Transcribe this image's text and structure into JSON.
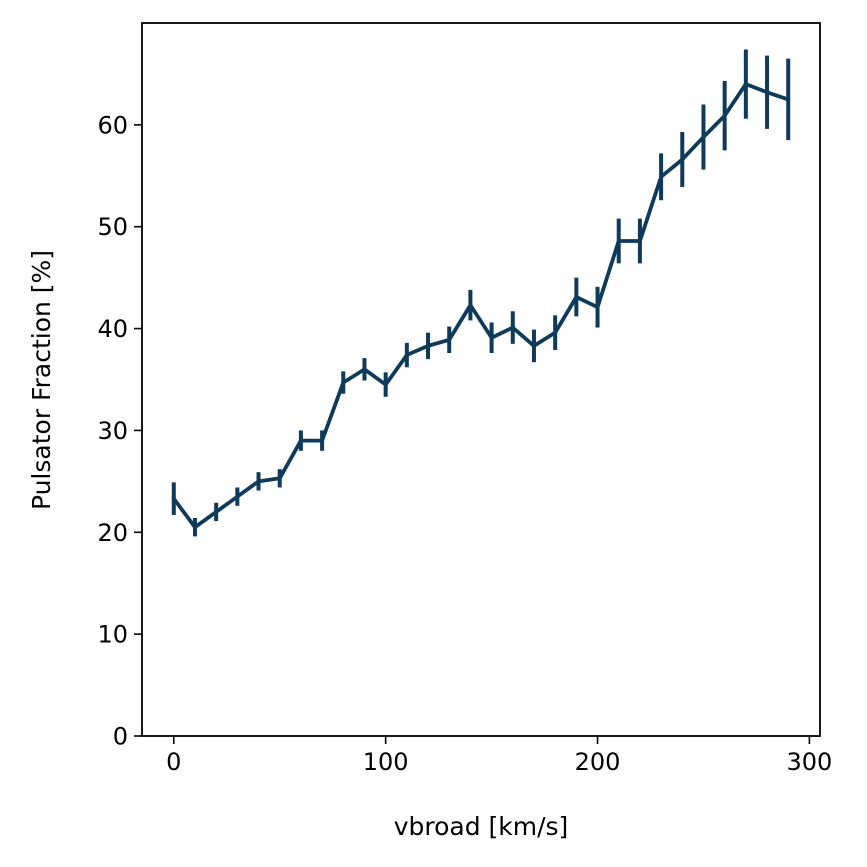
{
  "chart_data": {
    "type": "line",
    "title": "",
    "xlabel": "vbroad [km/s]",
    "ylabel": "Pulsator Fraction [%]",
    "xlim": [
      -15,
      305
    ],
    "ylim": [
      0,
      70
    ],
    "xticks": [
      0,
      100,
      200,
      300
    ],
    "yticks": [
      0,
      10,
      20,
      30,
      40,
      50,
      60
    ],
    "grid": false,
    "line_color": "#0f3a5a",
    "series": [
      {
        "name": "Pulsator Fraction",
        "x": [
          0,
          10,
          20,
          30,
          40,
          50,
          60,
          70,
          80,
          90,
          100,
          110,
          120,
          130,
          140,
          150,
          160,
          170,
          180,
          190,
          200,
          210,
          220,
          230,
          240,
          250,
          260,
          270,
          280,
          290
        ],
        "y": [
          23.3,
          20.5,
          22.0,
          23.5,
          25.0,
          25.3,
          29.0,
          29.0,
          34.7,
          36.0,
          34.5,
          37.4,
          38.3,
          38.9,
          42.3,
          39.1,
          40.1,
          38.3,
          39.6,
          43.1,
          42.1,
          48.6,
          48.6,
          54.9,
          56.6,
          58.8,
          60.9,
          64.0,
          63.2,
          62.5
        ],
        "err": [
          1.6,
          0.9,
          0.9,
          0.9,
          0.9,
          0.9,
          1.0,
          1.0,
          1.1,
          1.1,
          1.2,
          1.2,
          1.3,
          1.3,
          1.5,
          1.5,
          1.6,
          1.6,
          1.7,
          1.9,
          2.0,
          2.2,
          2.2,
          2.3,
          2.7,
          3.2,
          3.4,
          3.4,
          3.6,
          4.0
        ]
      }
    ]
  }
}
